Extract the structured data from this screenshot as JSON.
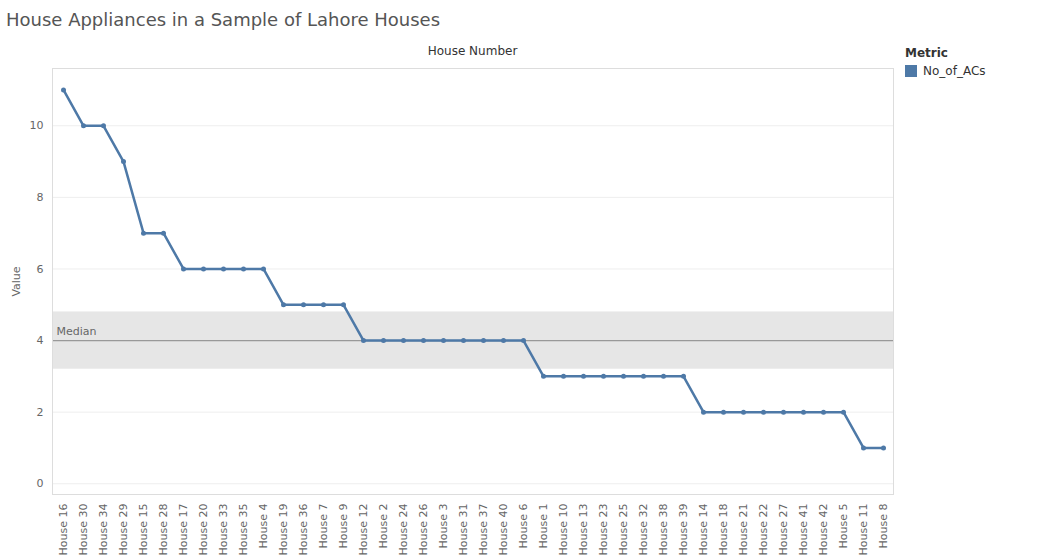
{
  "chart_data": {
    "type": "line",
    "title": "House Appliances in a Sample of Lahore Houses",
    "x_label": "House Number",
    "y_label": "Value",
    "legend_title": "Metric",
    "legend": "right",
    "categories": [
      "House 16",
      "House 30",
      "House 34",
      "House 29",
      "House 15",
      "House 28",
      "House 17",
      "House 20",
      "House 33",
      "House 35",
      "House 4",
      "House 19",
      "House 36",
      "House 7",
      "House 9",
      "House 12",
      "House 2",
      "House 24",
      "House 26",
      "House 3",
      "House 31",
      "House 37",
      "House 40",
      "House 6",
      "House 1",
      "House 10",
      "House 13",
      "House 23",
      "House 25",
      "House 32",
      "House 38",
      "House 39",
      "House 14",
      "House 18",
      "House 21",
      "House 22",
      "House 27",
      "House 41",
      "House 42",
      "House 5",
      "House 11",
      "House 8"
    ],
    "series": [
      {
        "name": "No_of_ACs",
        "color": "#4e79a7",
        "marker": "circle",
        "values": [
          11,
          10,
          10,
          9,
          7,
          7,
          6,
          6,
          6,
          6,
          6,
          5,
          5,
          5,
          5,
          4,
          4,
          4,
          4,
          4,
          4,
          4,
          4,
          4,
          3,
          3,
          3,
          3,
          3,
          3,
          3,
          3,
          2,
          2,
          2,
          2,
          2,
          2,
          2,
          2,
          1,
          1
        ]
      }
    ],
    "reference_line": {
      "label": "Median",
      "value": 4,
      "band": [
        3.2,
        4.8
      ]
    },
    "ylim": [
      -0.3,
      11.6
    ],
    "yticks": [
      0,
      2,
      4,
      6,
      8,
      10
    ],
    "grid": true
  }
}
